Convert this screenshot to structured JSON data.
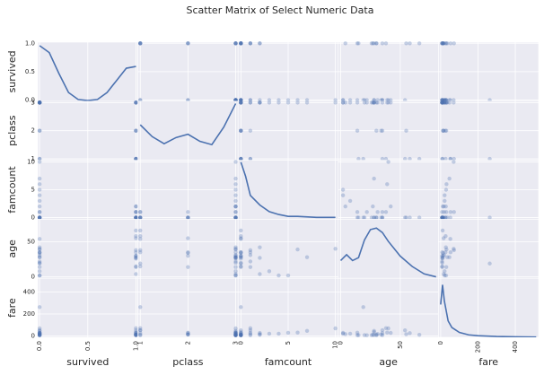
{
  "chart_data": {
    "type": "scatter_matrix",
    "title": "Scatter Matrix of Select Numeric Data",
    "color": "#4c72b0",
    "grid": true,
    "variables": [
      {
        "name": "survived",
        "lim": [
          -0.02,
          1.02
        ],
        "ticks": [
          {
            "value": 0,
            "label": "0.0"
          },
          {
            "value": 0.5,
            "label": "0.5"
          },
          {
            "value": 1,
            "label": "1.0"
          }
        ],
        "values": [
          0,
          1,
          1,
          1,
          0,
          0,
          0,
          0,
          1,
          1,
          1,
          1,
          0,
          0,
          0,
          1,
          0,
          1,
          0,
          1,
          0,
          0,
          1,
          1,
          0,
          0,
          0,
          1,
          0,
          0
        ],
        "kde": {
          "x": [
            0,
            0.1,
            0.2,
            0.3,
            0.4,
            0.5,
            0.6,
            0.7,
            0.8,
            0.9,
            1.0
          ],
          "y": [
            1.6,
            1.4,
            0.8,
            0.25,
            0.05,
            0.02,
            0.05,
            0.25,
            0.6,
            0.95,
            1.0
          ]
        },
        "density_lim": [
          0,
          1.7
        ]
      },
      {
        "name": "pclass",
        "lim": [
          0.95,
          3.05
        ],
        "ticks": [
          1,
          2,
          3
        ],
        "values": [
          3,
          1,
          3,
          1,
          3,
          3,
          1,
          3,
          3,
          2,
          3,
          1,
          3,
          3,
          3,
          2,
          3,
          2,
          3,
          3,
          2,
          2,
          1,
          3,
          3,
          1,
          3,
          1,
          3,
          3
        ],
        "kde": {
          "x": [
            1,
            1.25,
            1.5,
            1.75,
            2,
            2.25,
            2.5,
            2.75,
            3
          ],
          "y": [
            0.75,
            0.5,
            0.35,
            0.48,
            0.55,
            0.4,
            0.33,
            0.7,
            1.2
          ]
        },
        "density_lim": [
          0,
          1.25
        ]
      },
      {
        "name": "famcount",
        "lim": [
          -0.3,
          10.3
        ],
        "ticks": [
          0,
          5,
          10
        ],
        "values": [
          1,
          1,
          0,
          1,
          0,
          0,
          0,
          4,
          2,
          1,
          2,
          0,
          0,
          6,
          0,
          0,
          5,
          0,
          1,
          0,
          0,
          0,
          0,
          0,
          3,
          0,
          10,
          0,
          7,
          2
        ],
        "kde": {
          "x": [
            0,
            0.5,
            1,
            2,
            3,
            4,
            5,
            6,
            8,
            10
          ],
          "y": [
            0.6,
            0.45,
            0.25,
            0.15,
            0.08,
            0.05,
            0.03,
            0.03,
            0.02,
            0.02
          ]
        },
        "density_lim": [
          0,
          0.62
        ]
      },
      {
        "name": "age",
        "lim": [
          -2,
          82
        ],
        "ticks": [
          0,
          50
        ],
        "values": [
          22,
          38,
          26,
          35,
          35,
          28,
          54,
          2,
          27,
          14,
          4,
          58,
          20,
          39,
          14,
          55,
          2,
          30,
          31,
          30,
          35,
          34,
          15,
          28,
          8,
          19,
          40,
          66,
          28,
          42
        ],
        "kde": {
          "x": [
            0,
            5,
            10,
            15,
            20,
            25,
            30,
            35,
            40,
            50,
            60,
            70,
            80
          ],
          "y": [
            0.012,
            0.016,
            0.012,
            0.014,
            0.026,
            0.033,
            0.034,
            0.031,
            0.025,
            0.015,
            0.008,
            0.003,
            0.001
          ]
        },
        "density_lim": [
          0,
          0.04
        ]
      },
      {
        "name": "fare",
        "lim": [
          -12,
          525
        ],
        "ticks": [
          0,
          200,
          400
        ],
        "values": [
          7.25,
          71.28,
          7.93,
          53.1,
          8.05,
          8.46,
          51.86,
          21.08,
          11.13,
          30.07,
          16.7,
          26.55,
          8.05,
          31.28,
          7.85,
          16,
          29.13,
          13,
          18,
          7.23,
          26,
          13,
          8.03,
          35.5,
          21.08,
          263,
          69.55,
          10.5,
          46.9,
          27.9
        ],
        "kde": {
          "x": [
            0,
            10,
            20,
            40,
            60,
            100,
            150,
            200,
            300,
            400,
            512
          ],
          "y": [
            0.02,
            0.032,
            0.022,
            0.01,
            0.006,
            0.003,
            0.0015,
            0.001,
            0.0005,
            0.0003,
            0.0002
          ]
        },
        "density_lim": [
          0,
          0.036
        ]
      }
    ]
  }
}
